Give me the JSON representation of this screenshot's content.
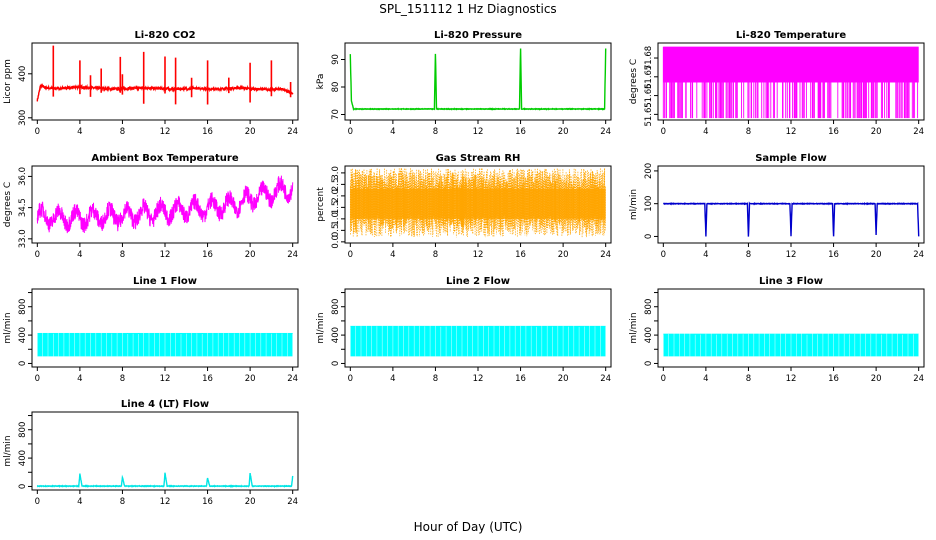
{
  "figure": {
    "title": "SPL_151112  1 Hz Diagnostics",
    "xlabel": "Hour of Day (UTC)"
  },
  "chart_data": [
    {
      "id": "li820-co2",
      "type": "line",
      "title": "Li-820 CO2",
      "ylabel": "Licor ppm",
      "color": "#ff0000",
      "xlim": [
        -0.5,
        24.5
      ],
      "ylim": [
        295,
        470
      ],
      "xticks": [
        0,
        4,
        8,
        12,
        16,
        20,
        24
      ],
      "yticks": [
        300,
        400
      ],
      "series": [
        {
          "x": [
            0,
            0.3,
            1,
            1.5,
            2,
            3,
            4,
            5,
            6,
            7,
            8,
            9,
            10,
            11,
            12,
            13,
            14,
            15,
            16,
            17,
            18,
            19,
            20,
            21,
            22,
            23,
            24
          ],
          "values": [
            340,
            372,
            368,
            366,
            367,
            368,
            370,
            368,
            367,
            365,
            366,
            367,
            368,
            367,
            366,
            365,
            366,
            367,
            366,
            365,
            367,
            368,
            366,
            365,
            364,
            366,
            355
          ]
        }
      ]
    },
    {
      "id": "li820-pressure",
      "type": "line",
      "title": "Li-820 Pressure",
      "ylabel": "kPa",
      "color": "#00cc00",
      "xlim": [
        -0.5,
        24.5
      ],
      "ylim": [
        68,
        96
      ],
      "xticks": [
        0,
        4,
        8,
        12,
        16,
        20,
        24
      ],
      "yticks": [
        70,
        80,
        90
      ],
      "series": [
        {
          "x": [
            0,
            0.1,
            0.3,
            4,
            7.9,
            8,
            8.1,
            12,
            15.9,
            16,
            16.1,
            20,
            23.9,
            24
          ],
          "values": [
            92,
            75,
            72,
            72,
            72,
            92,
            72,
            72,
            72,
            94,
            72,
            72,
            72,
            94
          ]
        }
      ]
    },
    {
      "id": "li820-temperature",
      "type": "area",
      "title": "Li-820 Temperature",
      "ylabel": "degrees C",
      "color": "#ff00ff",
      "xlim": [
        -0.5,
        24.5
      ],
      "ylim": [
        51.647,
        51.688
      ],
      "xticks": [
        0,
        4,
        8,
        12,
        16,
        20,
        24
      ],
      "yticks": [
        51.65,
        51.66,
        51.67,
        51.68
      ],
      "series": [
        {
          "x": [
            0,
            24
          ],
          "values": [
            51.686,
            51.686
          ]
        }
      ]
    },
    {
      "id": "ambient-box-temperature",
      "type": "line",
      "title": "Ambient Box Temperature",
      "ylabel": "degrees C",
      "color": "#ff00ff",
      "xlim": [
        -0.5,
        24.5
      ],
      "ylim": [
        32.8,
        36.5
      ],
      "xticks": [
        0,
        4,
        8,
        12,
        16,
        20,
        24
      ],
      "yticks": [
        33.0,
        34.5,
        36.0
      ],
      "yticklabels": [
        "33.0",
        "34.5",
        "36.0"
      ],
      "series": [
        {
          "x": [
            0,
            2,
            4,
            6,
            8,
            10,
            12,
            14,
            16,
            18,
            20,
            22,
            24
          ],
          "values": [
            34.1,
            34.0,
            34.0,
            34.1,
            34.1,
            34.2,
            34.3,
            34.4,
            34.5,
            34.6,
            34.9,
            35.2,
            35.5
          ]
        }
      ]
    },
    {
      "id": "gas-stream-rh",
      "type": "line",
      "title": "Gas Stream RH",
      "ylabel": "percent",
      "color": "#ffa500",
      "xlim": [
        -0.5,
        24.5
      ],
      "ylim": [
        -0.05,
        3.3
      ],
      "xticks": [
        0,
        4,
        8,
        12,
        16,
        20,
        24
      ],
      "yticks": [
        0.0,
        0.5,
        1.0,
        1.5,
        2.0,
        2.5,
        3.0
      ],
      "yticklabels": [
        "0.0",
        "0.5",
        "1.0",
        "1.5",
        "2.0",
        "2.5",
        "3.0"
      ],
      "series": [
        {
          "x": [
            0,
            24
          ],
          "values": [
            1.7,
            1.7
          ]
        }
      ]
    },
    {
      "id": "sample-flow",
      "type": "line",
      "title": "Sample Flow",
      "ylabel": "ml/min",
      "color": "#0000cc",
      "xlim": [
        -0.5,
        24.5
      ],
      "ylim": [
        -20,
        215
      ],
      "xticks": [
        0,
        4,
        8,
        12,
        16,
        20,
        24
      ],
      "yticks": [
        0,
        100,
        200
      ],
      "series": [
        {
          "x": [
            0,
            3.9,
            4,
            4.1,
            7.9,
            8,
            8.1,
            11.9,
            12,
            12.1,
            15.9,
            16,
            16.1,
            19.9,
            20,
            20.1,
            23.9,
            24
          ],
          "values": [
            100,
            100,
            0,
            100,
            100,
            0,
            100,
            100,
            0,
            100,
            100,
            0,
            100,
            100,
            5,
            100,
            100,
            0
          ]
        }
      ]
    },
    {
      "id": "line1-flow",
      "type": "area",
      "title": "Line 1 Flow",
      "ylabel": "ml/min",
      "color": "#00ffff",
      "xlim": [
        -0.5,
        24.5
      ],
      "ylim": [
        -50,
        1050
      ],
      "xticks": [
        0,
        4,
        8,
        12,
        16,
        20,
        24
      ],
      "yticks": [
        0,
        200,
        400,
        600,
        800,
        1000
      ],
      "yticklabels": [
        "0",
        "",
        "400",
        "",
        "800",
        ""
      ],
      "series": [
        {
          "x": [
            0,
            24
          ],
          "values": [
            430,
            430
          ]
        }
      ]
    },
    {
      "id": "line2-flow",
      "type": "area",
      "title": "Line 2 Flow",
      "ylabel": "ml/min",
      "color": "#00ffff",
      "xlim": [
        -0.5,
        24.5
      ],
      "ylim": [
        -50,
        1050
      ],
      "xticks": [
        0,
        4,
        8,
        12,
        16,
        20,
        24
      ],
      "yticks": [
        0,
        200,
        400,
        600,
        800,
        1000
      ],
      "yticklabels": [
        "0",
        "",
        "400",
        "",
        "800",
        ""
      ],
      "series": [
        {
          "x": [
            0,
            24
          ],
          "values": [
            530,
            530
          ]
        }
      ]
    },
    {
      "id": "line3-flow",
      "type": "area",
      "title": "Line 3 Flow",
      "ylabel": "ml/min",
      "color": "#00ffff",
      "xlim": [
        -0.5,
        24.5
      ],
      "ylim": [
        -50,
        1050
      ],
      "xticks": [
        0,
        4,
        8,
        12,
        16,
        20,
        24
      ],
      "yticks": [
        0,
        200,
        400,
        600,
        800,
        1000
      ],
      "yticklabels": [
        "0",
        "",
        "400",
        "",
        "800",
        ""
      ],
      "series": [
        {
          "x": [
            0,
            24
          ],
          "values": [
            420,
            420
          ]
        }
      ]
    },
    {
      "id": "line4-flow",
      "type": "line",
      "title": "Line 4 (LT) Flow",
      "ylabel": "ml/min",
      "color": "#00e5e5",
      "xlim": [
        -0.5,
        24.5
      ],
      "ylim": [
        -50,
        1050
      ],
      "xticks": [
        0,
        4,
        8,
        12,
        16,
        20,
        24
      ],
      "yticks": [
        0,
        200,
        400,
        600,
        800,
        1000
      ],
      "yticklabels": [
        "0",
        "",
        "400",
        "",
        "800",
        ""
      ],
      "series": [
        {
          "x": [
            0,
            3.9,
            4,
            4.2,
            7.9,
            8,
            8.2,
            11.9,
            12,
            12.2,
            15.9,
            16,
            16.2,
            19.9,
            20,
            20.2,
            23.9,
            24
          ],
          "values": [
            5,
            5,
            180,
            5,
            5,
            130,
            5,
            5,
            190,
            5,
            5,
            120,
            5,
            5,
            190,
            5,
            5,
            150
          ]
        }
      ]
    }
  ]
}
